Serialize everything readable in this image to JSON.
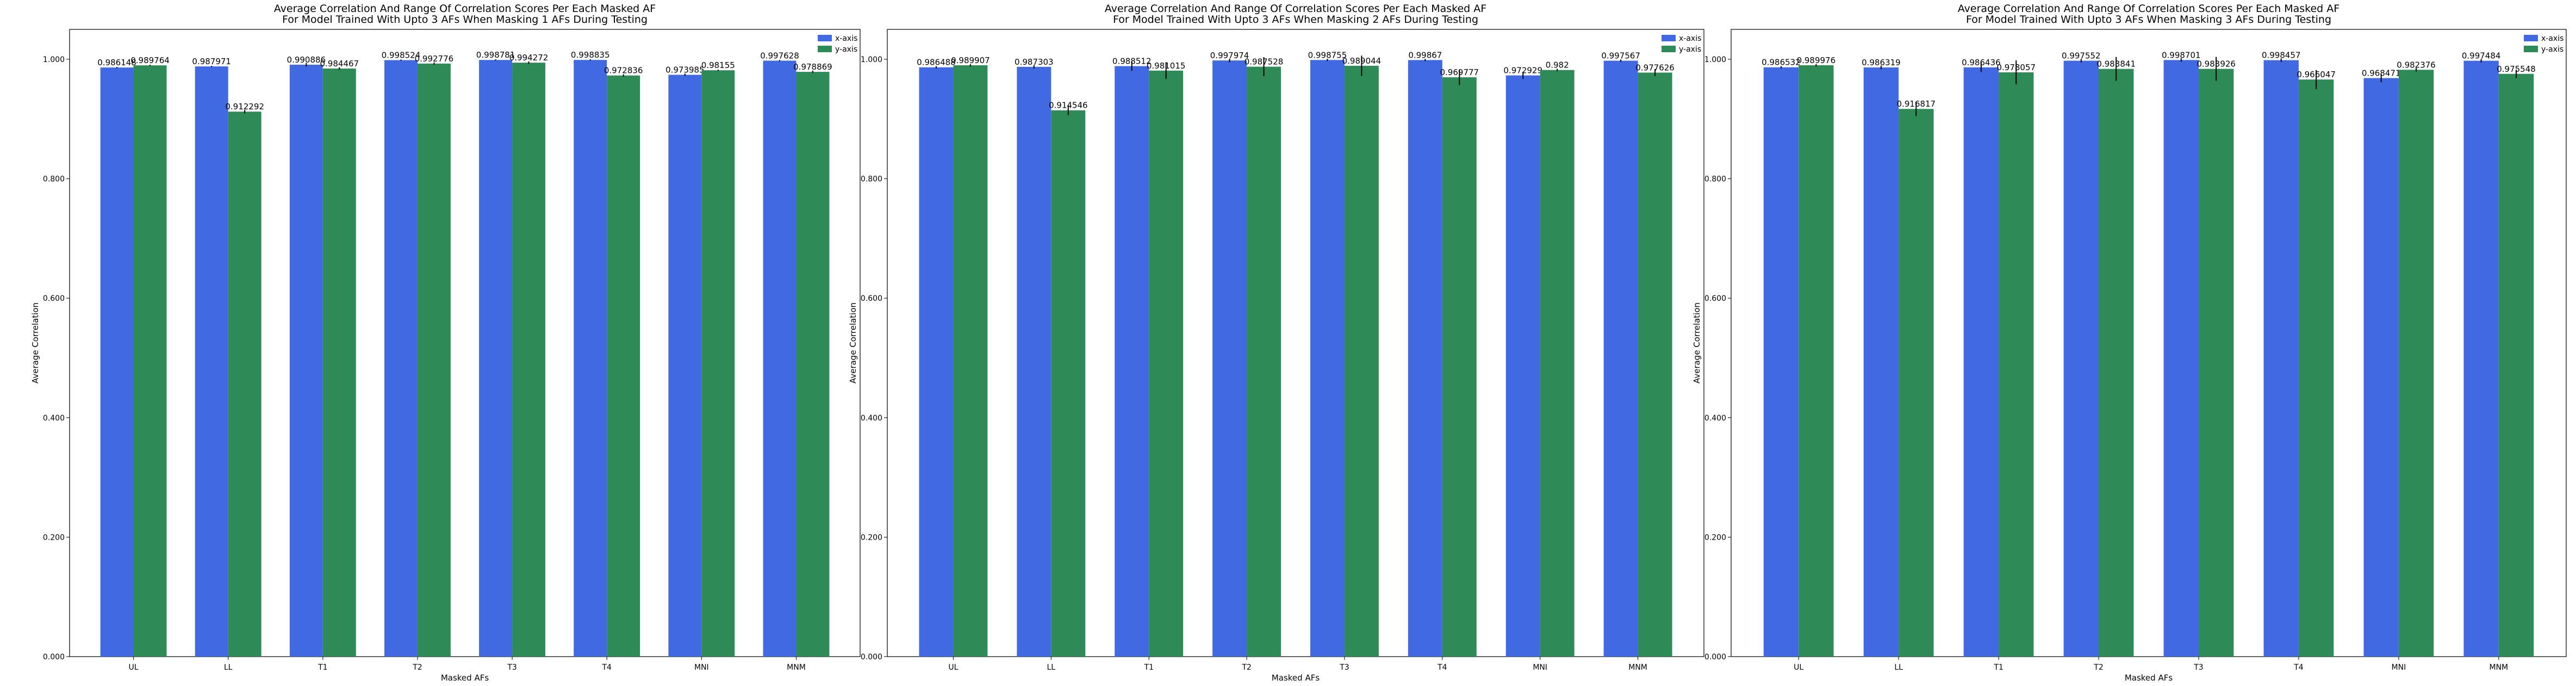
{
  "colors": {
    "x": "#4169e1",
    "y": "#2e8b57"
  },
  "chart_data": [
    {
      "type": "bar",
      "title": [
        "Average Correlation And Range Of Correlation Scores Per Each Masked AF",
        "For Model Trained With Upto 3 AFs When Masking 1 AFs During Testing"
      ],
      "xlabel": "Masked AFs",
      "ylabel": "Average Correlation",
      "ylim": [
        0,
        1.05
      ],
      "yticks": [
        "0.000",
        "0.200",
        "0.400",
        "0.600",
        "0.800",
        "1.000"
      ],
      "categories": [
        "UL",
        "LL",
        "T1",
        "T2",
        "T3",
        "T4",
        "MNI",
        "MNM"
      ],
      "legend": {
        "placement": "top-right",
        "entries": [
          "x-axis",
          "y-axis"
        ]
      },
      "series": [
        {
          "name": "x-axis",
          "values": [
            0.986148,
            0.987971,
            0.990886,
            0.998524,
            0.998781,
            0.998835,
            0.973985,
            0.997628
          ],
          "labels": [
            "0.986148",
            "0.987971",
            "0.990886",
            "0.998524",
            "0.998781",
            "0.998835",
            "0.973985",
            "0.997628"
          ],
          "err": [
            0.001,
            0.001,
            0.003,
            0.001,
            0.001,
            0.001,
            0.002,
            0.001
          ]
        },
        {
          "name": "y-axis",
          "values": [
            0.989764,
            0.912292,
            0.984467,
            0.992776,
            0.994272,
            0.972836,
            0.98155,
            0.978869
          ],
          "labels": [
            "0.989764",
            "0.912292",
            "0.984467",
            "0.992776",
            "0.994272",
            "0.972836",
            "0.98155",
            "0.978869"
          ],
          "err": [
            0.001,
            0.003,
            0.002,
            0.002,
            0.002,
            0.002,
            0.001,
            0.002
          ]
        }
      ]
    },
    {
      "type": "bar",
      "title": [
        "Average Correlation And Range Of Correlation Scores Per Each Masked AF",
        "For Model Trained With Upto 3 AFs When Masking 2 AFs During Testing"
      ],
      "xlabel": "Masked AFs",
      "ylabel": "Average Correlation",
      "ylim": [
        0,
        1.05
      ],
      "yticks": [
        "0.000",
        "0.200",
        "0.400",
        "0.600",
        "0.800",
        "1.000"
      ],
      "categories": [
        "UL",
        "LL",
        "T1",
        "T2",
        "T3",
        "T4",
        "MNI",
        "MNM"
      ],
      "legend": {
        "placement": "top-right",
        "entries": [
          "x-axis",
          "y-axis"
        ]
      },
      "series": [
        {
          "name": "x-axis",
          "values": [
            0.986488,
            0.987303,
            0.988512,
            0.997974,
            0.998755,
            0.99867,
            0.972929,
            0.997567
          ],
          "labels": [
            "0.986488",
            "0.987303",
            "0.988512",
            "0.997974",
            "0.998755",
            "0.99867",
            "0.972929",
            "0.997567"
          ],
          "err": [
            0.002,
            0.003,
            0.008,
            0.003,
            0.002,
            0.002,
            0.006,
            0.002
          ]
        },
        {
          "name": "y-axis",
          "values": [
            0.989907,
            0.914546,
            0.981015,
            0.987528,
            0.989044,
            0.969777,
            0.982,
            0.977626
          ],
          "labels": [
            "0.989907",
            "0.914546",
            "0.981015",
            "0.987528",
            "0.989044",
            "0.969777",
            "0.982",
            "0.977626"
          ],
          "err": [
            0.002,
            0.008,
            0.014,
            0.016,
            0.017,
            0.013,
            0.002,
            0.006
          ]
        }
      ]
    },
    {
      "type": "bar",
      "title": [
        "Average Correlation And Range Of Correlation Scores Per Each Masked AF",
        "For Model Trained With Upto 3 AFs When Masking 3 AFs During Testing"
      ],
      "xlabel": "Masked AFs",
      "ylabel": "Average Correlation",
      "ylim": [
        0,
        1.05
      ],
      "yticks": [
        "0.000",
        "0.200",
        "0.400",
        "0.600",
        "0.800",
        "1.000"
      ],
      "categories": [
        "UL",
        "LL",
        "T1",
        "T2",
        "T3",
        "T4",
        "MNI",
        "MNM"
      ],
      "legend": {
        "placement": "top-right",
        "entries": [
          "x-axis",
          "y-axis"
        ]
      },
      "series": [
        {
          "name": "x-axis",
          "values": [
            0.986532,
            0.986319,
            0.986436,
            0.997552,
            0.998701,
            0.998457,
            0.968471,
            0.997484
          ],
          "labels": [
            "0.986532",
            "0.986319",
            "0.986436",
            "0.997552",
            "0.998701",
            "0.998457",
            "0.968471",
            "0.997484"
          ],
          "err": [
            0.002,
            0.003,
            0.008,
            0.003,
            0.003,
            0.003,
            0.007,
            0.003
          ]
        },
        {
          "name": "y-axis",
          "values": [
            0.989976,
            0.916817,
            0.978057,
            0.983841,
            0.983926,
            0.966047,
            0.982376,
            0.975548
          ],
          "labels": [
            "0.989976",
            "0.916817",
            "0.978057",
            "0.983841",
            "0.983926",
            "0.966047",
            "0.982376",
            "0.975548"
          ],
          "err": [
            0.002,
            0.012,
            0.02,
            0.02,
            0.02,
            0.016,
            0.003,
            0.007
          ]
        }
      ]
    }
  ]
}
